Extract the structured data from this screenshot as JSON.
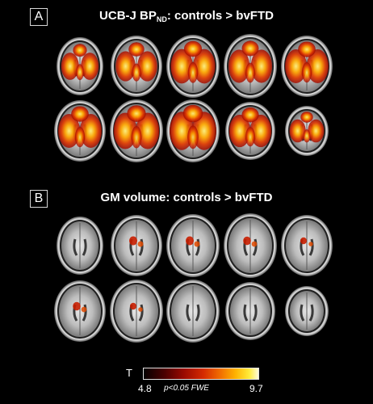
{
  "panel_a": {
    "label": "A",
    "title_main": "UCB-J BP",
    "title_sub": "ND",
    "title_rest": ": controls > bvFTD",
    "rows": [
      [
        {
          "int": 0.55
        },
        {
          "int": 0.6
        },
        {
          "int": 0.7
        },
        {
          "int": 0.65
        },
        {
          "int": 0.7
        }
      ],
      [
        {
          "int": 0.7
        },
        {
          "int": 0.75
        },
        {
          "int": 0.8
        },
        {
          "int": 0.7
        },
        {
          "int": 0.5
        }
      ]
    ]
  },
  "panel_b": {
    "label": "B",
    "title": "GM volume: controls > bvFTD",
    "rows": [
      [
        {
          "int": 0.0
        },
        {
          "int": 0.5
        },
        {
          "int": 0.5
        },
        {
          "int": 0.45
        },
        {
          "int": 0.25
        }
      ],
      [
        {
          "int": 0.45
        },
        {
          "int": 0.25
        },
        {
          "int": 0.0
        },
        {
          "int": 0.0
        },
        {
          "int": 0.0
        }
      ]
    ]
  },
  "colorbar": {
    "symbol": "T",
    "min": "4.8",
    "max": "9.7",
    "significance": "p<0.05 FWE"
  }
}
